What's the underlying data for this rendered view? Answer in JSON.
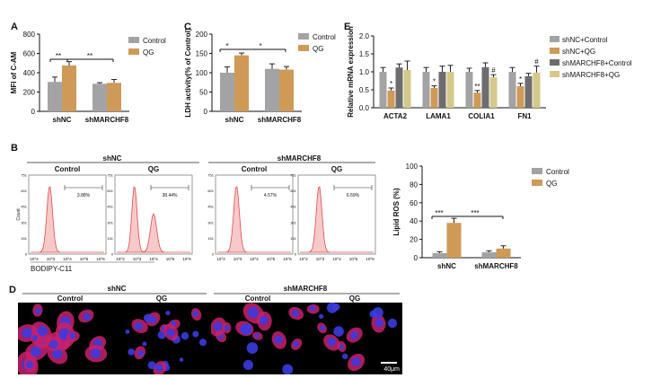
{
  "panels": {
    "A": {
      "label": "A"
    },
    "B": {
      "label": "B"
    },
    "C": {
      "label": "C"
    },
    "D": {
      "label": "D"
    },
    "E": {
      "label": "E"
    }
  },
  "colors": {
    "control": "#a3a3a6",
    "qg": "#cf9a57",
    "shnc_control": "#a3a3a6",
    "shnc_qg": "#cf9a57",
    "shm_control": "#6d6d70",
    "shm_qg": "#d4c98a",
    "flow": "#e04b4b"
  },
  "chart_data": [
    {
      "id": "A",
      "type": "bar",
      "ylabel": "MFI of C-AM",
      "ylim": [
        0,
        800
      ],
      "yticks": [
        "0",
        "200",
        "400",
        "600",
        "800"
      ],
      "categories": [
        "shNC",
        "shMARCHF8"
      ],
      "series": [
        {
          "name": "Control",
          "values": [
            305,
            285
          ],
          "errors": [
            50,
            12
          ]
        },
        {
          "name": "QG",
          "values": [
            475,
            295
          ],
          "errors": [
            40,
            35
          ]
        }
      ],
      "annotations": [
        "**",
        "**"
      ],
      "legend": "top-right"
    },
    {
      "id": "C",
      "type": "bar",
      "ylabel": "LDH activity(% of Control)",
      "ylim": [
        0,
        200
      ],
      "yticks": [
        "0",
        "50",
        "100",
        "150",
        "200"
      ],
      "categories": [
        "shNC",
        "shMARCHF8"
      ],
      "series": [
        {
          "name": "Control",
          "values": [
            100,
            110
          ],
          "errors": [
            15,
            13
          ]
        },
        {
          "name": "QG",
          "values": [
            145,
            108
          ],
          "errors": [
            6,
            8
          ]
        }
      ],
      "annotations": [
        "*",
        "*"
      ],
      "legend": "top-right"
    },
    {
      "id": "E",
      "type": "bar",
      "ylabel": "Relative mRNA expression",
      "ylim": [
        0,
        2.0
      ],
      "yticks": [
        "0.0",
        "0.5",
        "1.0",
        "1.5",
        "2.0"
      ],
      "categories": [
        "ACTA2",
        "LAMA1",
        "COLIA1",
        "FN1"
      ],
      "series": [
        {
          "name": "shNC+Control",
          "values": [
            1.0,
            1.0,
            1.0,
            1.0
          ],
          "errors": [
            0.12,
            0.12,
            0.1,
            0.12
          ]
        },
        {
          "name": "shNC+QG",
          "values": [
            0.48,
            0.55,
            0.42,
            0.6
          ],
          "errors": [
            0.07,
            0.06,
            0.06,
            0.08
          ]
        },
        {
          "name": "shMARCHF8+Control",
          "values": [
            1.12,
            1.0,
            1.13,
            0.88
          ],
          "errors": [
            0.1,
            0.16,
            0.12,
            0.08
          ]
        },
        {
          "name": "shMARCHF8+QG",
          "values": [
            1.05,
            1.0,
            0.85,
            0.98
          ],
          "errors": [
            0.25,
            0.18,
            0.07,
            0.18
          ]
        }
      ],
      "marks": [
        [
          "",
          "*",
          "",
          ""
        ],
        [
          "",
          "*",
          "",
          ""
        ],
        [
          "",
          "**",
          "",
          "#"
        ],
        [
          "",
          "*",
          "",
          "#"
        ]
      ],
      "legend": "right"
    },
    {
      "id": "B_lipid",
      "type": "bar",
      "ylabel": "Lipid ROS (%)",
      "ylim": [
        0,
        100
      ],
      "yticks": [
        "0",
        "20",
        "40",
        "60",
        "80",
        "100"
      ],
      "categories": [
        "shNC",
        "shMARCHF8"
      ],
      "series": [
        {
          "name": "Control",
          "values": [
            5,
            6
          ],
          "errors": [
            1.5,
            1.5
          ]
        },
        {
          "name": "QG",
          "values": [
            38,
            10
          ],
          "errors": [
            5,
            3
          ]
        }
      ],
      "annotations": [
        "***",
        "***"
      ],
      "legend": "top-right"
    },
    {
      "id": "B_flow",
      "type": "area",
      "group_labels": [
        "shNC",
        "shMARCHF8"
      ],
      "subplots": [
        {
          "title": "Control",
          "gate": "3.88%",
          "shape": "single"
        },
        {
          "title": "QG",
          "gate": "38.44%",
          "shape": "double"
        },
        {
          "title": "Control",
          "gate": "4.57%",
          "shape": "single"
        },
        {
          "title": "QG",
          "gate": "6.59%",
          "shape": "single"
        }
      ],
      "ylabel": "Count",
      "xticks": [
        "10^2",
        "10^3",
        "10^4",
        "10^5",
        "10^6"
      ],
      "yticks": [
        "0",
        "151",
        "301",
        "451",
        "601",
        "751"
      ],
      "xlabel": "BODIPY-C11"
    }
  ],
  "micro": {
    "group_labels": [
      "shNC",
      "shMARCHF8"
    ],
    "subtitles": [
      "Control",
      "QG",
      "Control",
      "QG"
    ],
    "scale": "40μm"
  }
}
